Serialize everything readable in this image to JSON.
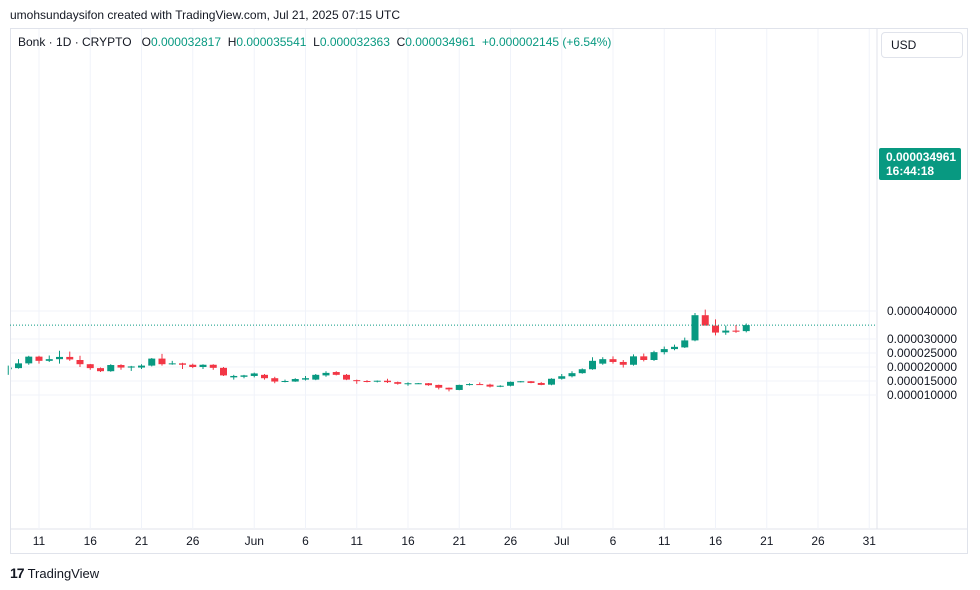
{
  "header": {
    "author_line": "umohsundaysifon created with TradingView.com, Jul 21, 2025 07:15 UTC"
  },
  "legend": {
    "symbol": "Bonk · 1D · CRYPTO",
    "o_label": "O",
    "o_value": "0.000032817",
    "h_label": "H",
    "h_value": "0.000035541",
    "l_label": "L",
    "l_value": "0.000032363",
    "c_label": "C",
    "c_value": "0.000034961",
    "change": "+0.000002145 (+6.54%)"
  },
  "currency_button": {
    "label": "USD"
  },
  "last_price": {
    "value": "0.000034961",
    "countdown": "16:44:18"
  },
  "footer": {
    "brand": "TradingView",
    "logo_glyph": "17"
  },
  "colors": {
    "up": "#089981",
    "down": "#f23645",
    "grid": "#f0f3fa",
    "axis_text": "#131722"
  },
  "chart_data": {
    "type": "candlestick",
    "y_ticks": [
      {
        "value": 4e-05,
        "label": "0.000040000"
      },
      {
        "value": 3e-05,
        "label": "0.000030000"
      },
      {
        "value": 2.5e-05,
        "label": "0.000025000"
      },
      {
        "value": 2e-05,
        "label": "0.000020000"
      },
      {
        "value": 1.5e-05,
        "label": "0.000015000"
      },
      {
        "value": 1e-05,
        "label": "0.000010000"
      }
    ],
    "x_ticks": [
      {
        "day": 0,
        "label": "11"
      },
      {
        "day": 5,
        "label": "16"
      },
      {
        "day": 10,
        "label": "21"
      },
      {
        "day": 15,
        "label": "26"
      },
      {
        "day": 21,
        "label": "Jun"
      },
      {
        "day": 26,
        "label": "6"
      },
      {
        "day": 31,
        "label": "11"
      },
      {
        "day": 36,
        "label": "16"
      },
      {
        "day": 41,
        "label": "21"
      },
      {
        "day": 46,
        "label": "26"
      },
      {
        "day": 51,
        "label": "Jul"
      },
      {
        "day": 56,
        "label": "6"
      },
      {
        "day": 61,
        "label": "11"
      },
      {
        "day": 66,
        "label": "16"
      },
      {
        "day": 71,
        "label": "21"
      },
      {
        "day": 76,
        "label": "26"
      },
      {
        "day": 81,
        "label": "31"
      }
    ],
    "last_price": 3.4961e-05,
    "candles": [
      {
        "day": -3,
        "o": 1.92e-05,
        "h": 2.05e-05,
        "l": 1.72e-05,
        "c": 1.98e-05
      },
      {
        "day": -2,
        "o": 1.96e-05,
        "h": 2.28e-05,
        "l": 1.94e-05,
        "c": 2.13e-05
      },
      {
        "day": -1,
        "o": 2.13e-05,
        "h": 2.4e-05,
        "l": 2.08e-05,
        "c": 2.37e-05
      },
      {
        "day": 0,
        "o": 2.37e-05,
        "h": 2.4e-05,
        "l": 2.12e-05,
        "c": 2.22e-05
      },
      {
        "day": 1,
        "o": 2.22e-05,
        "h": 2.41e-05,
        "l": 2.18e-05,
        "c": 2.28e-05
      },
      {
        "day": 2,
        "o": 2.28e-05,
        "h": 2.58e-05,
        "l": 2.12e-05,
        "c": 2.36e-05
      },
      {
        "day": 3,
        "o": 2.36e-05,
        "h": 2.55e-05,
        "l": 2.22e-05,
        "c": 2.27e-05
      },
      {
        "day": 4,
        "o": 2.25e-05,
        "h": 2.4e-05,
        "l": 2e-05,
        "c": 2.1e-05
      },
      {
        "day": 5,
        "o": 2.1e-05,
        "h": 2.11e-05,
        "l": 1.9e-05,
        "c": 1.96e-05
      },
      {
        "day": 6,
        "o": 1.96e-05,
        "h": 1.98e-05,
        "l": 1.82e-05,
        "c": 1.85e-05
      },
      {
        "day": 7,
        "o": 1.85e-05,
        "h": 2.1e-05,
        "l": 1.83e-05,
        "c": 2.07e-05
      },
      {
        "day": 8,
        "o": 2.07e-05,
        "h": 2.1e-05,
        "l": 1.9e-05,
        "c": 1.98e-05
      },
      {
        "day": 9,
        "o": 1.98e-05,
        "h": 2.04e-05,
        "l": 1.86e-05,
        "c": 2.02e-05
      },
      {
        "day": 10,
        "o": 1.98e-05,
        "h": 2.1e-05,
        "l": 1.93e-05,
        "c": 2.05e-05
      },
      {
        "day": 11,
        "o": 2.05e-05,
        "h": 2.32e-05,
        "l": 2.02e-05,
        "c": 2.3e-05
      },
      {
        "day": 12,
        "o": 2.3e-05,
        "h": 2.47e-05,
        "l": 2.05e-05,
        "c": 2.1e-05
      },
      {
        "day": 13,
        "o": 2.1e-05,
        "h": 2.22e-05,
        "l": 2.08e-05,
        "c": 2.13e-05
      },
      {
        "day": 14,
        "o": 2.13e-05,
        "h": 2.15e-05,
        "l": 1.93e-05,
        "c": 2.08e-05
      },
      {
        "day": 15,
        "o": 2.08e-05,
        "h": 2.12e-05,
        "l": 1.96e-05,
        "c": 2e-05
      },
      {
        "day": 16,
        "o": 2e-05,
        "h": 2.1e-05,
        "l": 1.93e-05,
        "c": 2.08e-05
      },
      {
        "day": 17,
        "o": 2.08e-05,
        "h": 2.1e-05,
        "l": 1.9e-05,
        "c": 1.97e-05
      },
      {
        "day": 18,
        "o": 1.97e-05,
        "h": 2e-05,
        "l": 1.68e-05,
        "c": 1.7e-05
      },
      {
        "day": 19,
        "o": 1.63e-05,
        "h": 1.72e-05,
        "l": 1.55e-05,
        "c": 1.68e-05
      },
      {
        "day": 20,
        "o": 1.65e-05,
        "h": 1.72e-05,
        "l": 1.6e-05,
        "c": 1.7e-05
      },
      {
        "day": 21,
        "o": 1.68e-05,
        "h": 1.8e-05,
        "l": 1.63e-05,
        "c": 1.77e-05
      },
      {
        "day": 22,
        "o": 1.72e-05,
        "h": 1.75e-05,
        "l": 1.55e-05,
        "c": 1.6e-05
      },
      {
        "day": 23,
        "o": 1.6e-05,
        "h": 1.65e-05,
        "l": 1.42e-05,
        "c": 1.48e-05
      },
      {
        "day": 24,
        "o": 1.47e-05,
        "h": 1.55e-05,
        "l": 1.45e-05,
        "c": 1.5e-05
      },
      {
        "day": 25,
        "o": 1.48e-05,
        "h": 1.6e-05,
        "l": 1.47e-05,
        "c": 1.57e-05
      },
      {
        "day": 26,
        "o": 1.55e-05,
        "h": 1.68e-05,
        "l": 1.52e-05,
        "c": 1.6e-05
      },
      {
        "day": 27,
        "o": 1.55e-05,
        "h": 1.75e-05,
        "l": 1.53e-05,
        "c": 1.72e-05
      },
      {
        "day": 28,
        "o": 1.7e-05,
        "h": 1.85e-05,
        "l": 1.65e-05,
        "c": 1.79e-05
      },
      {
        "day": 29,
        "o": 1.82e-05,
        "h": 1.85e-05,
        "l": 1.7e-05,
        "c": 1.72e-05
      },
      {
        "day": 30,
        "o": 1.72e-05,
        "h": 1.75e-05,
        "l": 1.53e-05,
        "c": 1.55e-05
      },
      {
        "day": 31,
        "o": 1.53e-05,
        "h": 1.55e-05,
        "l": 1.4e-05,
        "c": 1.5e-05
      },
      {
        "day": 32,
        "o": 1.5e-05,
        "h": 1.53e-05,
        "l": 1.45e-05,
        "c": 1.48e-05
      },
      {
        "day": 33,
        "o": 1.48e-05,
        "h": 1.52e-05,
        "l": 1.45e-05,
        "c": 1.51e-05
      },
      {
        "day": 34,
        "o": 1.51e-05,
        "h": 1.58e-05,
        "l": 1.43e-05,
        "c": 1.46e-05
      },
      {
        "day": 35,
        "o": 1.46e-05,
        "h": 1.48e-05,
        "l": 1.37e-05,
        "c": 1.4e-05
      },
      {
        "day": 36,
        "o": 1.4e-05,
        "h": 1.45e-05,
        "l": 1.33e-05,
        "c": 1.42e-05
      },
      {
        "day": 37,
        "o": 1.41e-05,
        "h": 1.43e-05,
        "l": 1.4e-05,
        "c": 1.42e-05
      },
      {
        "day": 38,
        "o": 1.42e-05,
        "h": 1.43e-05,
        "l": 1.33e-05,
        "c": 1.35e-05
      },
      {
        "day": 39,
        "o": 1.36e-05,
        "h": 1.37e-05,
        "l": 1.2e-05,
        "c": 1.26e-05
      },
      {
        "day": 40,
        "o": 1.26e-05,
        "h": 1.27e-05,
        "l": 1.13e-05,
        "c": 1.2e-05
      },
      {
        "day": 41,
        "o": 1.18e-05,
        "h": 1.37e-05,
        "l": 1.17e-05,
        "c": 1.36e-05
      },
      {
        "day": 42,
        "o": 1.36e-05,
        "h": 1.42e-05,
        "l": 1.34e-05,
        "c": 1.39e-05
      },
      {
        "day": 43,
        "o": 1.39e-05,
        "h": 1.45e-05,
        "l": 1.36e-05,
        "c": 1.37e-05
      },
      {
        "day": 44,
        "o": 1.37e-05,
        "h": 1.4e-05,
        "l": 1.27e-05,
        "c": 1.3e-05
      },
      {
        "day": 45,
        "o": 1.3e-05,
        "h": 1.35e-05,
        "l": 1.28e-05,
        "c": 1.33e-05
      },
      {
        "day": 46,
        "o": 1.33e-05,
        "h": 1.48e-05,
        "l": 1.31e-05,
        "c": 1.47e-05
      },
      {
        "day": 47,
        "o": 1.47e-05,
        "h": 1.5e-05,
        "l": 1.45e-05,
        "c": 1.49e-05
      },
      {
        "day": 48,
        "o": 1.49e-05,
        "h": 1.5e-05,
        "l": 1.42e-05,
        "c": 1.43e-05
      },
      {
        "day": 49,
        "o": 1.43e-05,
        "h": 1.46e-05,
        "l": 1.35e-05,
        "c": 1.36e-05
      },
      {
        "day": 50,
        "o": 1.37e-05,
        "h": 1.6e-05,
        "l": 1.35e-05,
        "c": 1.58e-05
      },
      {
        "day": 51,
        "o": 1.58e-05,
        "h": 1.75e-05,
        "l": 1.55e-05,
        "c": 1.67e-05
      },
      {
        "day": 52,
        "o": 1.67e-05,
        "h": 1.85e-05,
        "l": 1.63e-05,
        "c": 1.78e-05
      },
      {
        "day": 53,
        "o": 1.78e-05,
        "h": 1.95e-05,
        "l": 1.76e-05,
        "c": 1.92e-05
      },
      {
        "day": 54,
        "o": 1.92e-05,
        "h": 2.35e-05,
        "l": 1.9e-05,
        "c": 2.22e-05
      },
      {
        "day": 55,
        "o": 2.12e-05,
        "h": 2.35e-05,
        "l": 2.08e-05,
        "c": 2.28e-05
      },
      {
        "day": 56,
        "o": 2.28e-05,
        "h": 2.38e-05,
        "l": 2.12e-05,
        "c": 2.18e-05
      },
      {
        "day": 57,
        "o": 2.18e-05,
        "h": 2.25e-05,
        "l": 1.98e-05,
        "c": 2.08e-05
      },
      {
        "day": 58,
        "o": 2.08e-05,
        "h": 2.45e-05,
        "l": 2.05e-05,
        "c": 2.38e-05
      },
      {
        "day": 59,
        "o": 2.38e-05,
        "h": 2.48e-05,
        "l": 2.2e-05,
        "c": 2.25e-05
      },
      {
        "day": 60,
        "o": 2.25e-05,
        "h": 2.58e-05,
        "l": 2.22e-05,
        "c": 2.53e-05
      },
      {
        "day": 61,
        "o": 2.53e-05,
        "h": 2.73e-05,
        "l": 2.45e-05,
        "c": 2.64e-05
      },
      {
        "day": 62,
        "o": 2.64e-05,
        "h": 2.8e-05,
        "l": 2.6e-05,
        "c": 2.72e-05
      },
      {
        "day": 63,
        "o": 2.7e-05,
        "h": 3.05e-05,
        "l": 2.68e-05,
        "c": 2.95e-05
      },
      {
        "day": 64,
        "o": 2.95e-05,
        "h": 3.93e-05,
        "l": 2.92e-05,
        "c": 3.85e-05
      },
      {
        "day": 65,
        "o": 3.85e-05,
        "h": 4.05e-05,
        "l": 3.48e-05,
        "c": 3.48e-05
      },
      {
        "day": 66,
        "o": 3.48e-05,
        "h": 3.7e-05,
        "l": 3.13e-05,
        "c": 3.23e-05
      },
      {
        "day": 67,
        "o": 3.23e-05,
        "h": 3.48e-05,
        "l": 3.15e-05,
        "c": 3.3e-05
      },
      {
        "day": 68,
        "o": 3.3e-05,
        "h": 3.5e-05,
        "l": 3.22e-05,
        "c": 3.26e-05
      },
      {
        "day": 69,
        "o": 3.2817e-05,
        "h": 3.5541e-05,
        "l": 3.2363e-05,
        "c": 3.4961e-05
      }
    ]
  }
}
